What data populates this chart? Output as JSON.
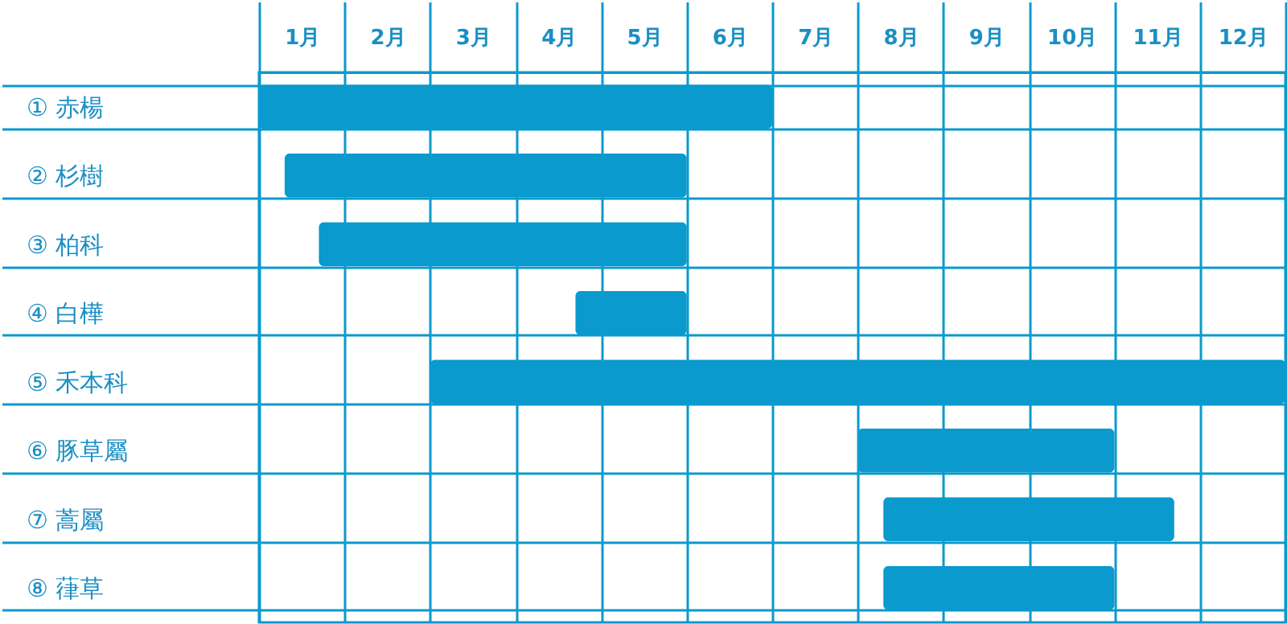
{
  "chart_data": {
    "type": "bar",
    "orientation": "horizontal",
    "categories": [
      "① 赤楊",
      "② 杉樹",
      "③ 柏科",
      "④ 白樺",
      "⑤ 禾本科",
      "⑥ 豚草屬",
      "⑦ 蒿屬",
      "⑧ 葎草"
    ],
    "base": [
      0,
      0.3,
      0.7,
      3.7,
      2,
      7,
      7.3,
      7.3
    ],
    "values": [
      6,
      4.7,
      4.3,
      1.3,
      10,
      3,
      3.4,
      2.7
    ],
    "color": "#0a9acd",
    "xlim": [
      0,
      12
    ],
    "xticks": [
      {
        "value": 0,
        "label": null
      },
      {
        "value": 0.5,
        "label": "1月"
      },
      {
        "value": 1,
        "label": null
      },
      {
        "value": 1.5,
        "label": "2月"
      },
      {
        "value": 2,
        "label": null
      },
      {
        "value": 2.5,
        "label": "3月"
      },
      {
        "value": 3,
        "label": null
      },
      {
        "value": 3.5,
        "label": "4月"
      },
      {
        "value": 4,
        "label": null
      },
      {
        "value": 4.5,
        "label": "5月"
      },
      {
        "value": 5,
        "label": null
      },
      {
        "value": 5.5,
        "label": "6月"
      },
      {
        "value": 6,
        "label": null
      },
      {
        "value": 6.5,
        "label": "7月"
      },
      {
        "value": 7,
        "label": null
      },
      {
        "value": 7.5,
        "label": "8月"
      },
      {
        "value": 8,
        "label": null
      },
      {
        "value": 8.5,
        "label": "9月"
      },
      {
        "value": 9,
        "label": null
      },
      {
        "value": 9.5,
        "label": "10月"
      },
      {
        "value": 10,
        "label": null
      },
      {
        "value": 10.5,
        "label": "11月"
      },
      {
        "value": 11,
        "label": null
      },
      {
        "value": 11.5,
        "label": "12月"
      },
      {
        "value": 12,
        "label": null
      }
    ],
    "grid": true
  }
}
